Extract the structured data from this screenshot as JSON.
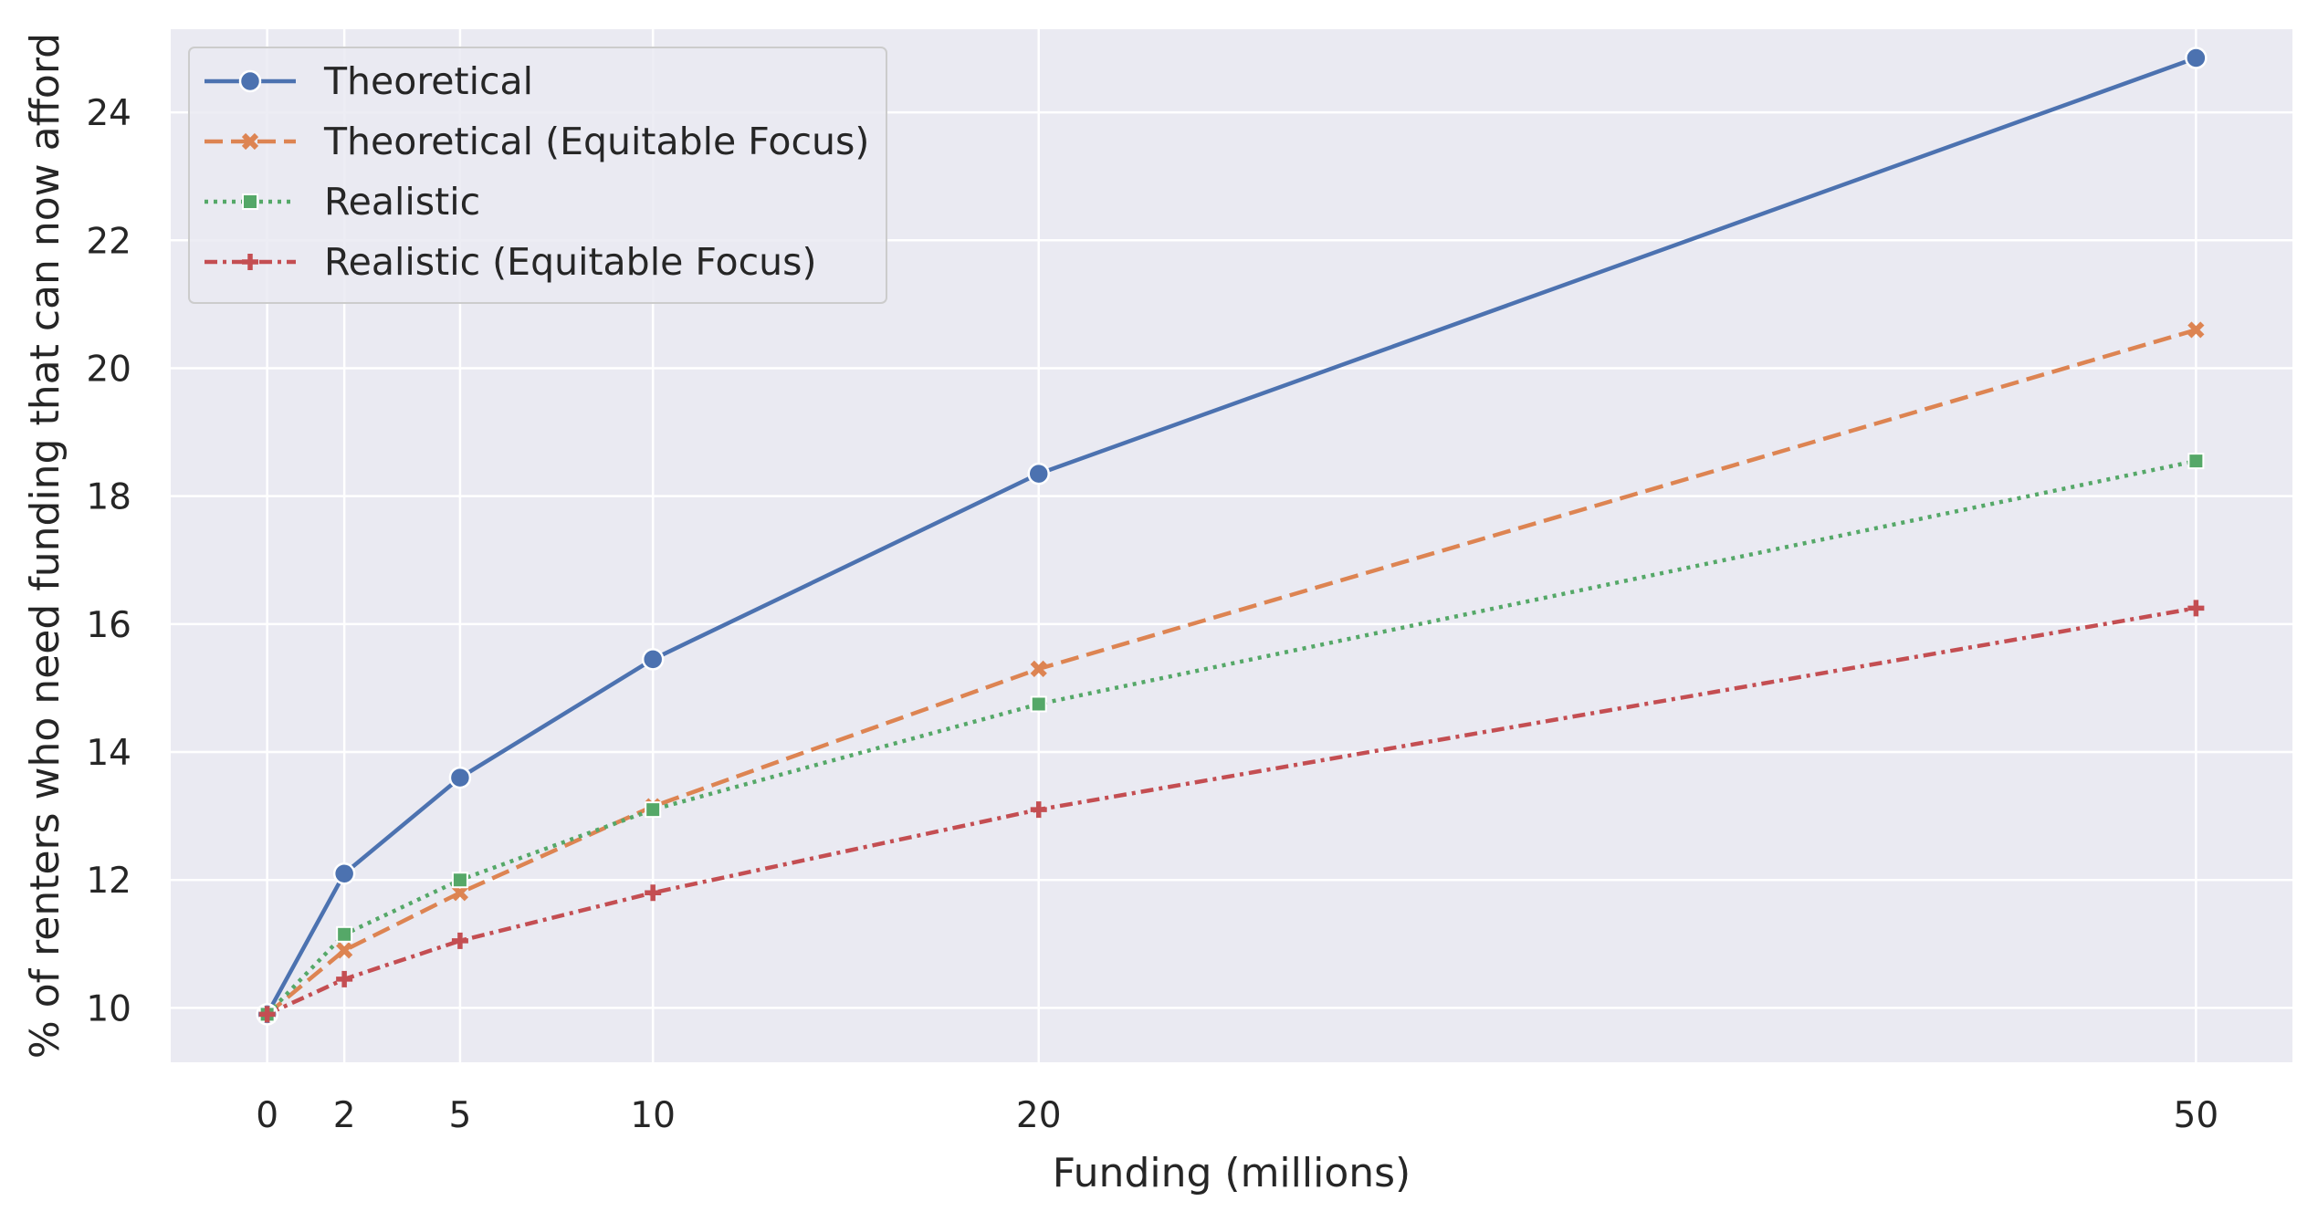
{
  "chart_data": {
    "type": "line",
    "title": "",
    "xlabel": "Funding (millions)",
    "ylabel": "% of renters who need funding that can now afford",
    "x": [
      0,
      2,
      5,
      10,
      20,
      50
    ],
    "xticks": [
      0,
      2,
      5,
      10,
      20,
      50
    ],
    "yticks": [
      10,
      12,
      14,
      16,
      18,
      20,
      22,
      24
    ],
    "xlim": [
      -2.5,
      52.5
    ],
    "ylim": [
      9.15,
      25.3
    ],
    "grid": true,
    "legend_position": "top-left",
    "background": "#eaeaf2",
    "series": [
      {
        "name": "Theoretical",
        "values": [
          9.9,
          12.1,
          13.6,
          15.45,
          18.35,
          24.85
        ],
        "color": "#4c72b0",
        "marker": "circle",
        "linestyle": "solid"
      },
      {
        "name": "Theoretical (Equitable Focus)",
        "values": [
          9.9,
          10.9,
          11.8,
          13.15,
          15.3,
          20.6
        ],
        "color": "#dd8452",
        "marker": "x",
        "linestyle": "dashed"
      },
      {
        "name": "Realistic",
        "values": [
          9.9,
          11.15,
          12.0,
          13.1,
          14.75,
          18.55
        ],
        "color": "#55a868",
        "marker": "square",
        "linestyle": "dotted"
      },
      {
        "name": "Realistic (Equitable Focus)",
        "values": [
          9.9,
          10.45,
          11.05,
          11.8,
          13.1,
          16.25
        ],
        "color": "#c44e52",
        "marker": "plus",
        "linestyle": "dashdot"
      }
    ]
  }
}
